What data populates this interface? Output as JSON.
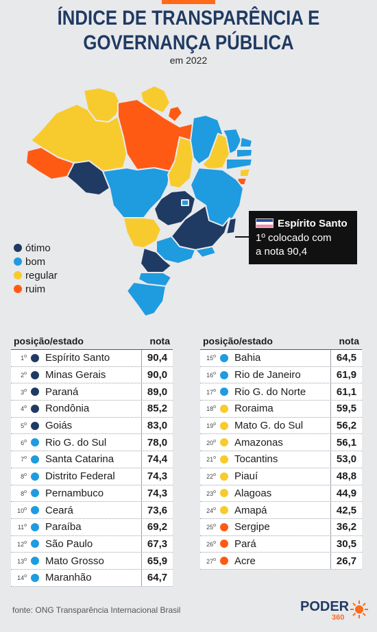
{
  "title": {
    "line1": "ÍNDICE DE TRANSPARÊNCIA E",
    "line2": "GOVERNANÇA PÚBLICA",
    "subtitle": "em 2022"
  },
  "colors": {
    "otimo": "#1f3a63",
    "bom": "#1f9be0",
    "regular": "#f7cb2d",
    "ruim": "#ff5a14",
    "brand": "#ff6a1a"
  },
  "legend": [
    {
      "label": "ótimo",
      "color": "#1f3a63"
    },
    {
      "label": "bom",
      "color": "#1f9be0"
    },
    {
      "label": "regular",
      "color": "#f7cb2d"
    },
    {
      "label": "ruim",
      "color": "#ff5a14"
    }
  ],
  "callout": {
    "state": "Espírito Santo",
    "line1": "1º colocado com",
    "line2": "a nota 90,4"
  },
  "table_headers": {
    "position": "posição/estado",
    "score": "nota"
  },
  "left_rows": [
    {
      "pos": "1",
      "state": "Espírito Santo",
      "score": "90,4",
      "level": "otimo"
    },
    {
      "pos": "2",
      "state": "Minas Gerais",
      "score": "90,0",
      "level": "otimo"
    },
    {
      "pos": "3",
      "state": "Paraná",
      "score": "89,0",
      "level": "otimo"
    },
    {
      "pos": "4",
      "state": "Rondônia",
      "score": "85,2",
      "level": "otimo"
    },
    {
      "pos": "5",
      "state": "Goiás",
      "score": "83,0",
      "level": "otimo"
    },
    {
      "pos": "6",
      "state": "Rio G. do Sul",
      "score": "78,0",
      "level": "bom"
    },
    {
      "pos": "7",
      "state": "Santa Catarina",
      "score": "74,4",
      "level": "bom"
    },
    {
      "pos": "8",
      "state": "Distrito Federal",
      "score": "74,3",
      "level": "bom"
    },
    {
      "pos": "8",
      "state": "Pernambuco",
      "score": "74,3",
      "level": "bom"
    },
    {
      "pos": "10",
      "state": "Ceará",
      "score": "73,6",
      "level": "bom"
    },
    {
      "pos": "11",
      "state": "Paraíba",
      "score": "69,2",
      "level": "bom"
    },
    {
      "pos": "12",
      "state": "São Paulo",
      "score": "67,3",
      "level": "bom"
    },
    {
      "pos": "13",
      "state": "Mato Grosso",
      "score": "65,9",
      "level": "bom"
    },
    {
      "pos": "14",
      "state": "Maranhão",
      "score": "64,7",
      "level": "bom"
    }
  ],
  "right_rows": [
    {
      "pos": "15",
      "state": "Bahia",
      "score": "64,5",
      "level": "bom"
    },
    {
      "pos": "16",
      "state": "Rio de Janeiro",
      "score": "61,9",
      "level": "bom"
    },
    {
      "pos": "17",
      "state": "Rio G. do Norte",
      "score": "61,1",
      "level": "bom"
    },
    {
      "pos": "18",
      "state": "Roraima",
      "score": "59,5",
      "level": "regular"
    },
    {
      "pos": "19",
      "state": "Mato G. do Sul",
      "score": "56,2",
      "level": "regular"
    },
    {
      "pos": "20",
      "state": "Amazonas",
      "score": "56,1",
      "level": "regular"
    },
    {
      "pos": "21",
      "state": "Tocantins",
      "score": "53,0",
      "level": "regular"
    },
    {
      "pos": "22",
      "state": "Piauí",
      "score": "48,8",
      "level": "regular"
    },
    {
      "pos": "23",
      "state": "Alagoas",
      "score": "44,9",
      "level": "regular"
    },
    {
      "pos": "24",
      "state": "Amapá",
      "score": "42,5",
      "level": "regular"
    },
    {
      "pos": "25",
      "state": "Sergipe",
      "score": "36,2",
      "level": "ruim"
    },
    {
      "pos": "26",
      "state": "Pará",
      "score": "30,5",
      "level": "ruim"
    },
    {
      "pos": "27",
      "state": "Acre",
      "score": "26,7",
      "level": "ruim"
    }
  ],
  "ordinal_suffix": "o",
  "footer": {
    "source": "fonte: ONG Transparência Internacional Brasil",
    "logo": "PODER",
    "logo_sub": "360"
  }
}
